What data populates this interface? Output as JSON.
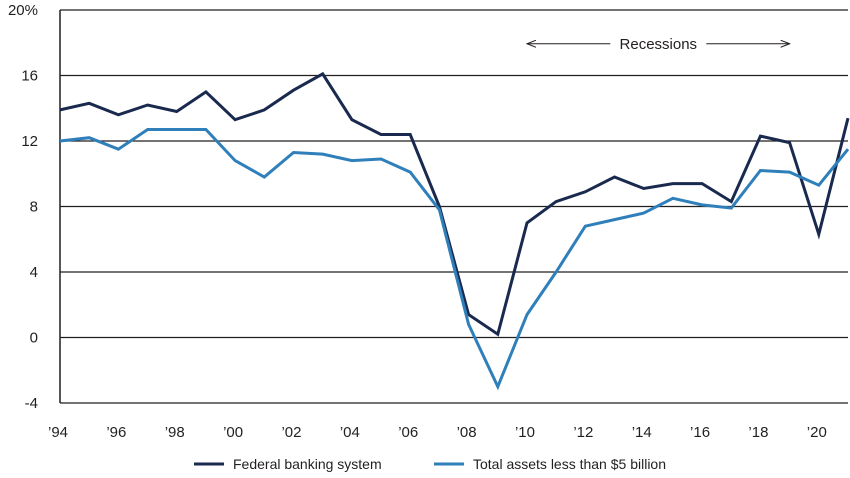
{
  "chart_data": {
    "type": "line",
    "x": [
      1994,
      1995,
      1996,
      1997,
      1998,
      1999,
      2000,
      2001,
      2002,
      2003,
      2004,
      2005,
      2006,
      2007,
      2008,
      2009,
      2010,
      2011,
      2012,
      2013,
      2014,
      2015,
      2016,
      2017,
      2018,
      2019,
      2020,
      2021
    ],
    "series": [
      {
        "name": "Federal banking system",
        "color": "#1a2a4f",
        "values": [
          13.9,
          14.3,
          13.6,
          14.2,
          13.8,
          15.0,
          13.3,
          13.9,
          15.1,
          16.1,
          13.3,
          12.4,
          12.4,
          8.0,
          1.4,
          0.2,
          7.0,
          8.3,
          8.9,
          9.8,
          9.1,
          9.4,
          9.4,
          8.3,
          12.3,
          11.9,
          6.3,
          13.4
        ]
      },
      {
        "name": "Total assets less than $5 billion",
        "color": "#2f7fba",
        "values": [
          12.0,
          12.2,
          11.5,
          12.7,
          12.7,
          12.7,
          10.8,
          9.8,
          11.3,
          11.2,
          10.8,
          10.9,
          10.1,
          7.8,
          0.8,
          -3.0,
          1.4,
          4.0,
          6.8,
          7.2,
          7.6,
          8.5,
          8.1,
          7.9,
          10.2,
          10.1,
          9.3,
          11.5
        ]
      }
    ],
    "ylim": [
      -4,
      20
    ],
    "yticks": [
      -4,
      0,
      4,
      8,
      12,
      16,
      20
    ],
    "ytick_labels": [
      "-4",
      "0",
      "4",
      "8",
      "12",
      "16",
      "20%"
    ],
    "xticks": [
      1994,
      1996,
      1998,
      2000,
      2002,
      2004,
      2006,
      2008,
      2010,
      2012,
      2014,
      2016,
      2018,
      2020
    ],
    "xtick_labels": [
      "’94",
      "’96",
      "’98",
      "’00",
      "’02",
      "’04",
      "’06",
      "’08",
      "’10",
      "’12",
      "’14",
      "’16",
      "’18",
      "’20"
    ],
    "xlim": [
      1994,
      2021
    ],
    "grid": true,
    "legend": "bottom",
    "annotation": {
      "text": "Recessions",
      "x_start": 2010,
      "x_end": 2019,
      "y": 18
    },
    "title": "",
    "xlabel": "",
    "ylabel": ""
  }
}
